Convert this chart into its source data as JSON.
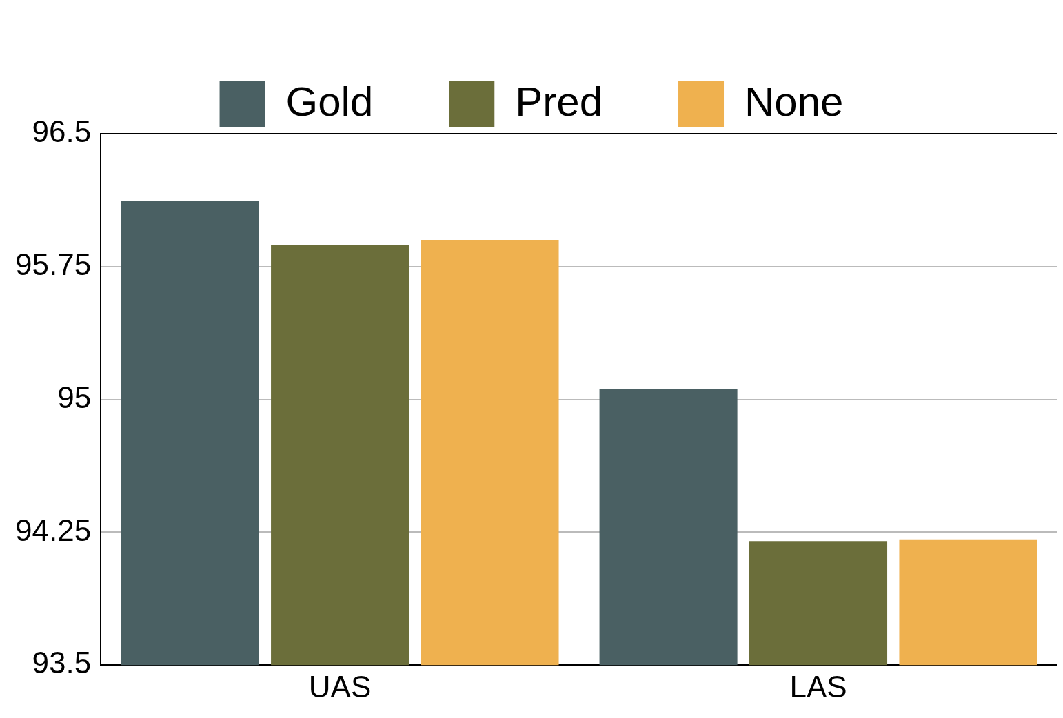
{
  "chart_data": {
    "type": "bar",
    "categories": [
      "UAS",
      "LAS"
    ],
    "series": [
      {
        "name": "Gold",
        "color": "#4a6063",
        "values": [
          96.12,
          95.06
        ]
      },
      {
        "name": "Pred",
        "color": "#6b6e3a",
        "values": [
          95.87,
          94.2
        ]
      },
      {
        "name": "None",
        "color": "#efb14f",
        "values": [
          95.9,
          94.21
        ]
      }
    ],
    "ylim": [
      93.5,
      96.5
    ],
    "yticks": [
      93.5,
      94.25,
      95,
      95.75,
      96.5
    ],
    "grid": "y",
    "legend": "top"
  }
}
